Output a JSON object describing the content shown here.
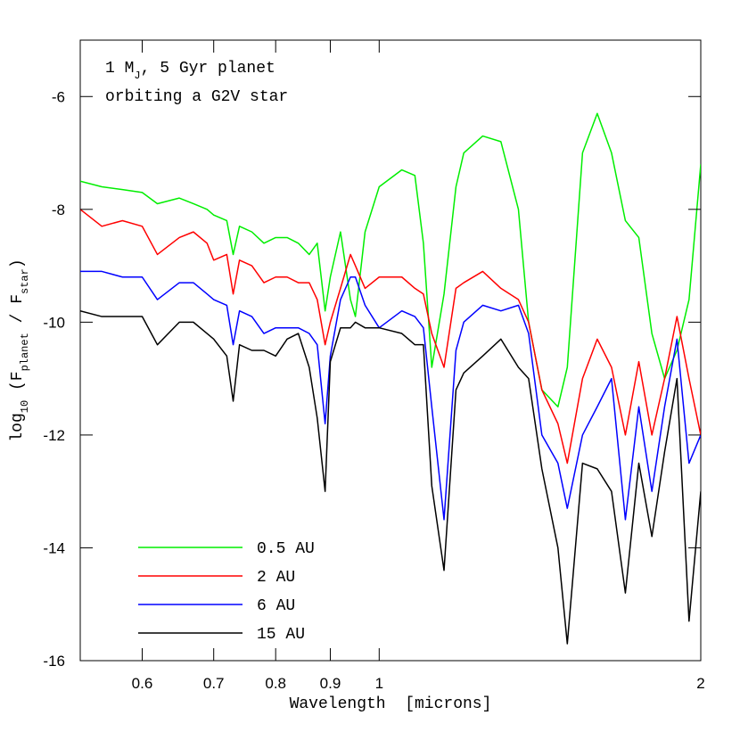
{
  "chart_data": {
    "type": "line",
    "annotation": [
      [
        {
          "text": "1 M"
        },
        {
          "text": "J",
          "sub": true
        },
        {
          "text": ", 5 Gyr planet"
        }
      ],
      [
        {
          "text": "orbiting a G2V star"
        }
      ]
    ],
    "xlabel": "Wavelength  [microns]",
    "ylabel": [
      {
        "text": "log"
      },
      {
        "text": "10",
        "sub": true
      },
      {
        "text": " (F"
      },
      {
        "text": "planet",
        "sub": true
      },
      {
        "text": " / F"
      },
      {
        "text": "star",
        "sub": true
      },
      {
        "text": ")"
      }
    ],
    "xscale": "log",
    "xlim": [
      0.525,
      2
    ],
    "ylim": [
      -16,
      -5
    ],
    "xticks": [
      0.6,
      0.7,
      0.8,
      0.9,
      1,
      2
    ],
    "yticks": [
      -6,
      -8,
      -10,
      -12,
      -14,
      -16
    ],
    "legend": "lower left",
    "x": [
      0.525,
      0.55,
      0.575,
      0.6,
      0.62,
      0.65,
      0.67,
      0.69,
      0.7,
      0.72,
      0.73,
      0.74,
      0.76,
      0.78,
      0.8,
      0.82,
      0.84,
      0.86,
      0.875,
      0.89,
      0.9,
      0.92,
      0.94,
      0.95,
      0.97,
      1.0,
      1.05,
      1.08,
      1.1,
      1.12,
      1.15,
      1.18,
      1.2,
      1.25,
      1.3,
      1.35,
      1.38,
      1.42,
      1.47,
      1.5,
      1.55,
      1.6,
      1.65,
      1.7,
      1.75,
      1.8,
      1.85,
      1.9,
      1.95,
      2.0
    ],
    "series": [
      {
        "name": "0.5 AU",
        "color": "#00ee00",
        "values": [
          -7.5,
          -7.6,
          -7.65,
          -7.7,
          -7.9,
          -7.8,
          -7.9,
          -8.0,
          -8.1,
          -8.2,
          -8.8,
          -8.3,
          -8.4,
          -8.6,
          -8.5,
          -8.5,
          -8.6,
          -8.8,
          -8.6,
          -9.8,
          -9.2,
          -8.4,
          -9.6,
          -9.9,
          -8.4,
          -7.6,
          -7.3,
          -7.4,
          -8.6,
          -10.8,
          -9.5,
          -7.6,
          -7.0,
          -6.7,
          -6.8,
          -8.0,
          -10.0,
          -11.2,
          -11.5,
          -10.8,
          -7.0,
          -6.3,
          -7.0,
          -8.2,
          -8.5,
          -10.2,
          -11.0,
          -10.5,
          -9.6,
          -7.2
        ]
      },
      {
        "name": "2 AU",
        "color": "#ff0000",
        "values": [
          -8.0,
          -8.3,
          -8.2,
          -8.3,
          -8.8,
          -8.5,
          -8.4,
          -8.6,
          -8.9,
          -8.8,
          -9.5,
          -8.9,
          -9.0,
          -9.3,
          -9.2,
          -9.2,
          -9.3,
          -9.3,
          -9.6,
          -10.4,
          -10.0,
          -9.4,
          -8.8,
          -9.0,
          -9.4,
          -9.2,
          -9.2,
          -9.4,
          -9.5,
          -10.2,
          -10.8,
          -9.4,
          -9.3,
          -9.1,
          -9.4,
          -9.6,
          -10.0,
          -11.2,
          -11.8,
          -12.5,
          -11,
          -10.3,
          -10.8,
          -12,
          -10.7,
          -12,
          -11,
          -9.9,
          -11,
          -12
        ]
      },
      {
        "name": "6 AU",
        "color": "#0000ff",
        "values": [
          -9.1,
          -9.1,
          -9.2,
          -9.2,
          -9.6,
          -9.3,
          -9.3,
          -9.5,
          -9.6,
          -9.7,
          -10.4,
          -9.8,
          -9.9,
          -10.2,
          -10.1,
          -10.1,
          -10.1,
          -10.2,
          -10.4,
          -11.8,
          -10.6,
          -9.6,
          -9.2,
          -9.2,
          -9.7,
          -10.1,
          -9.8,
          -9.9,
          -10.1,
          -11.5,
          -13.5,
          -10.5,
          -10.0,
          -9.7,
          -9.8,
          -9.7,
          -10.2,
          -12,
          -12.5,
          -13.3,
          -12,
          -11.5,
          -11,
          -13.5,
          -11.5,
          -13,
          -11.5,
          -10.3,
          -12.5,
          -12
        ]
      },
      {
        "name": "15 AU",
        "color": "#000000",
        "values": [
          -9.8,
          -9.9,
          -9.9,
          -9.9,
          -10.4,
          -10.0,
          -10.0,
          -10.2,
          -10.3,
          -10.6,
          -11.4,
          -10.4,
          -10.5,
          -10.5,
          -10.6,
          -10.3,
          -10.2,
          -10.8,
          -11.7,
          -13.0,
          -10.7,
          -10.1,
          -10.1,
          -10.0,
          -10.1,
          -10.1,
          -10.2,
          -10.4,
          -10.4,
          -12.9,
          -14.4,
          -11.2,
          -10.9,
          -10.6,
          -10.3,
          -10.8,
          -11,
          -12.6,
          -14,
          -15.7,
          -12.5,
          -12.6,
          -13,
          -14.8,
          -12.5,
          -13.8,
          -12.3,
          -11,
          -15.3,
          -13
        ]
      }
    ]
  }
}
